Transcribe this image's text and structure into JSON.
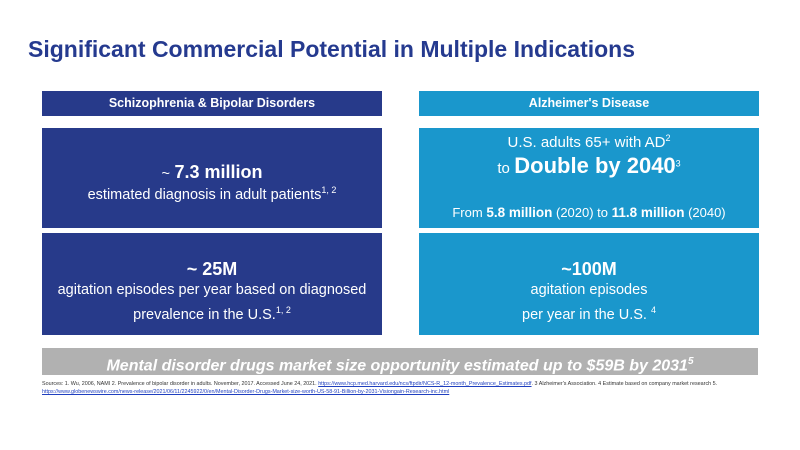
{
  "title": "Significant Commercial Potential in Multiple Indications",
  "left": {
    "header": "Schizophrenia & Bipolar Disorders",
    "box1": {
      "tilde": "~",
      "value": "7.3 million",
      "text": "estimated diagnosis in adult patients",
      "sup": "1, 2"
    },
    "box2": {
      "value": "~ 25M",
      "text_line1": "agitation episodes per year based on diagnosed",
      "text_line2": "prevalence in the U.S.",
      "sup": "1, 2"
    }
  },
  "right": {
    "header": "Alzheimer's Disease",
    "box1": {
      "line1": "U.S. adults 65+ with AD",
      "line1_sup": "2",
      "to": "to",
      "double": "Double by 2040",
      "double_sup": "3",
      "from_label": "From",
      "from_value": "5.8 million",
      "from_year": "(2020) to",
      "to_value": "11.8 million",
      "to_year": "(2040)"
    },
    "box2": {
      "value": "~100M",
      "text_line1": "agitation episodes",
      "text_line2": "per year in the U.S.",
      "sup": "4"
    }
  },
  "banner": {
    "text": "Mental disorder drugs market size opportunity estimated up to $59B by 2031",
    "sup": "5"
  },
  "sources": {
    "text1": "Sources: 1. Wu, 2006, NAMI 2. Prevalence of bipolar disorder in adults. November, 2017. Accessed June 24, 2021.",
    "link1": "https://www.hcp.med.harvard.edu/ncs/ftpdir/NCS-R_12-month_Prevalence_Estimates.pdf",
    "text2": ". 3 Alzheimer's Association. 4 Estimate based on company market research 5.",
    "link2": "https://www.globenewswire.com/news-release/2021/06/11/2245922/0/en/Mental-Disorder-Drugs-Market-size-worth-US-58-91-Billion-by-2031-Visiongain-Research-inc.html"
  }
}
